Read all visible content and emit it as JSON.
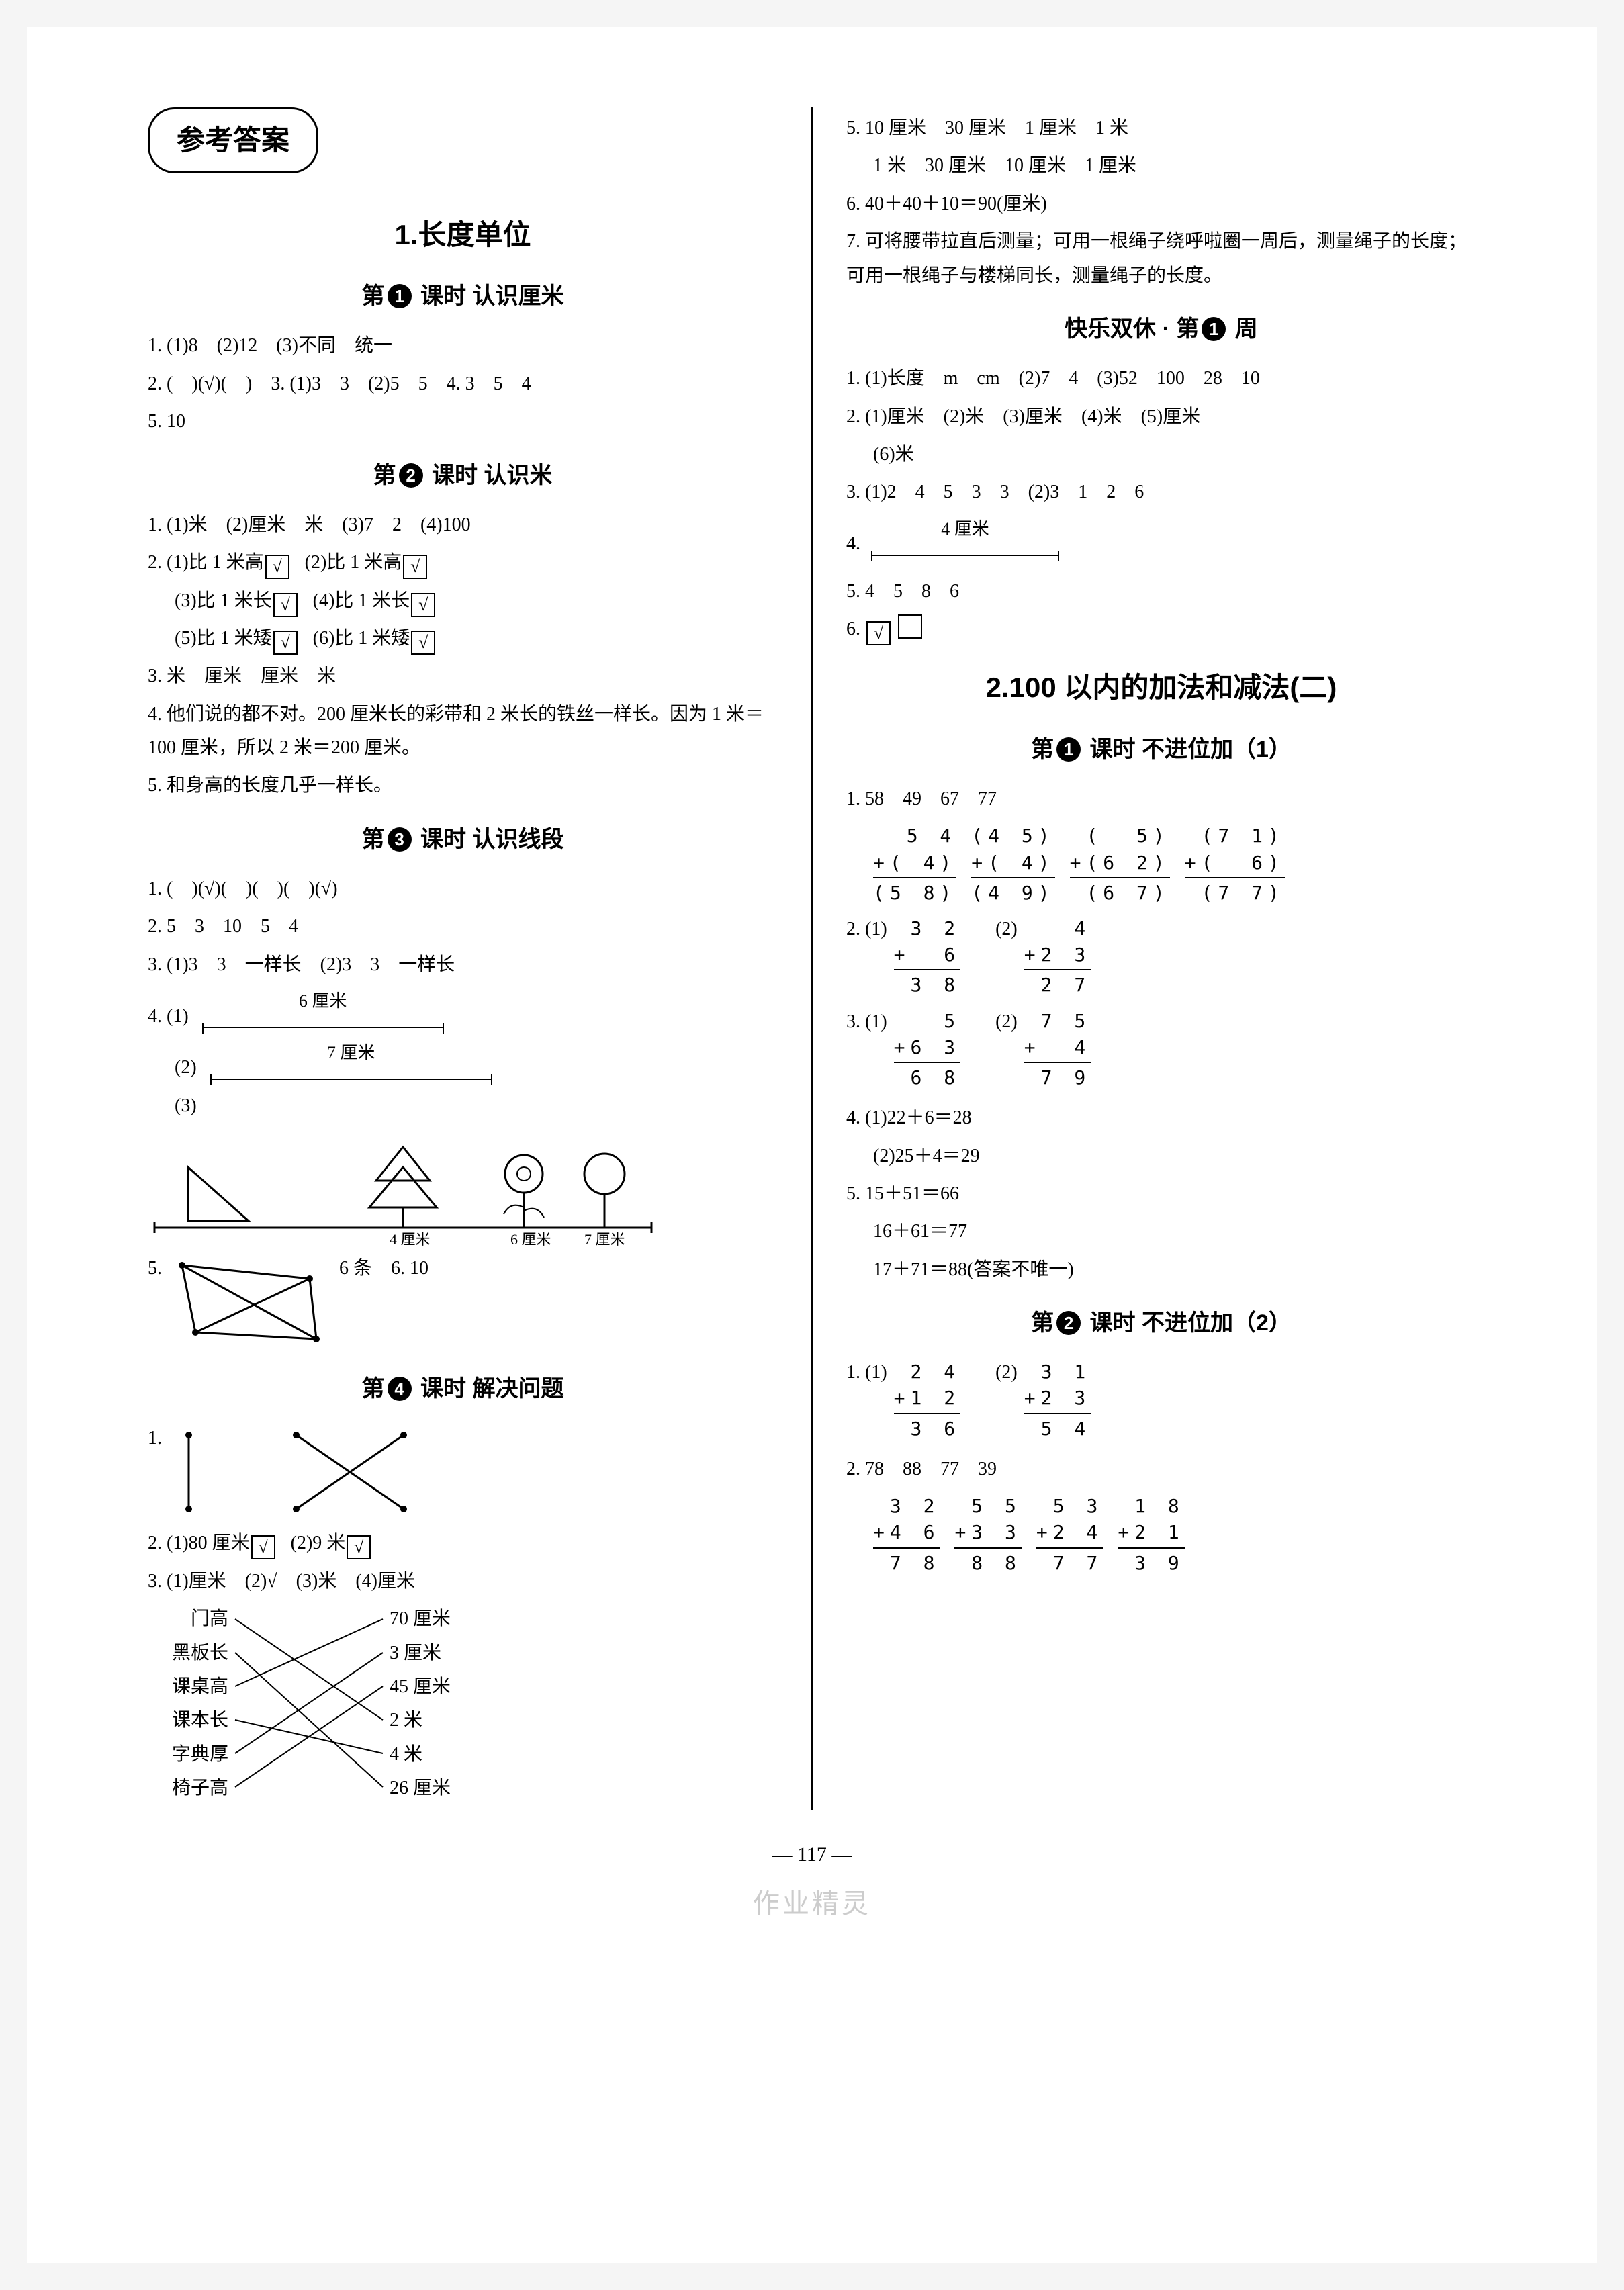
{
  "badge": "参考答案",
  "page_number": "— 117 —",
  "watermark": "作业精灵",
  "left": {
    "unit1": "1.长度单位",
    "l1_title_pre": "第",
    "l1_title_num": "1",
    "l1_title_post": " 课时  认识厘米",
    "l1_1": "1. (1)8　(2)12　(3)不同　统一",
    "l1_2": "2. (　)(√)(　)　3. (1)3　3　(2)5　5　4. 3　5　4",
    "l1_5": "5. 10",
    "l2_title_pre": "第",
    "l2_title_num": "2",
    "l2_title_post": " 课时  认识米",
    "l2_1": "1. (1)米　(2)厘米　米　(3)7　2　(4)100",
    "l2_2a": "2. (1)比 1 米高",
    "l2_2b": "(2)比 1 米高",
    "l2_2c": "(3)比 1 米长",
    "l2_2d": "(4)比 1 米长",
    "l2_2e": "(5)比 1 米矮",
    "l2_2f": "(6)比 1 米矮",
    "l2_3": "3. 米　厘米　厘米　米",
    "l2_4": "4. 他们说的都不对。200 厘米长的彩带和 2 米长的铁丝一样长。因为 1 米＝100 厘米，所以 2 米＝200 厘米。",
    "l2_5": "5. 和身高的长度几乎一样长。",
    "l3_title_pre": "第",
    "l3_title_num": "3",
    "l3_title_post": " 课时  认识线段",
    "l3_1": "1. (　)(√)(　)(　)(　)(√)",
    "l3_2": "2. 5　3　10　5　4",
    "l3_3": "3. (1)3　3　一样长　(2)3　3　一样长",
    "l3_4_1": "4. (1)",
    "l3_4_1_len": "6 厘米",
    "l3_4_2": "(2)",
    "l3_4_2_len": "7 厘米",
    "l3_4_3": "(3)",
    "l3_fig_labels": [
      "4 厘米",
      "6 厘米",
      "7 厘米"
    ],
    "l3_5": "5.",
    "l3_5_tail": "6 条　6. 10",
    "l4_title_pre": "第",
    "l4_title_num": "4",
    "l4_title_post": " 课时  解决问题",
    "l4_1": "1.",
    "l4_2": "2. (1)80 厘米",
    "l4_2b": "(2)9 米",
    "l4_3": "3. (1)厘米　(2)√　(3)米　(4)厘米",
    "l4_4": "4. 门高",
    "match_left": [
      "门高",
      "黑板长",
      "课桌高",
      "课本长",
      "字典厚",
      "椅子高"
    ],
    "match_right": [
      "70 厘米",
      "3 厘米",
      "45 厘米",
      "2 米",
      "4 米",
      "26 厘米"
    ]
  },
  "right": {
    "r5": "5. 10 厘米　30 厘米　1 厘米　1 米",
    "r5b": "1 米　30 厘米　10 厘米　1 厘米",
    "r6": "6. 40＋40＋10＝90(厘米)",
    "r7": "7. 可将腰带拉直后测量；可用一根绳子绕呼啦圈一周后，测量绳子的长度；可用一根绳子与楼梯同长，测量绳子的长度。",
    "week_title_pre": "快乐双休 · 第",
    "week_title_num": "1",
    "week_title_post": " 周",
    "w1": "1. (1)长度　m　cm　(2)7　4　(3)52　100　28　10",
    "w2": "2. (1)厘米　(2)米　(3)厘米　(4)米　(5)厘米",
    "w2b": "(6)米",
    "w3": "3. (1)2　4　5　3　3　(2)3　1　2　6",
    "w4": "4.",
    "w4_len": "4 厘米",
    "w5": "5. 4　5　8　6",
    "w6": "6.",
    "unit2": "2.100 以内的加法和减法(二)",
    "u2l1_pre": "第",
    "u2l1_num": "1",
    "u2l1_post": " 课时  不进位加（1）",
    "u2_1_head": "1. 58　49　67　77",
    "vm1": [
      {
        "a": " 5 4",
        "b": "+( 4)",
        "c": "(5 8)"
      },
      {
        "a": "(4 5)",
        "b": "+( 4)",
        "c": "(4 9)"
      },
      {
        "a": "(  5)",
        "b": "+(6 2)",
        "c": "(6 7)"
      },
      {
        "a": "(7 1)",
        "b": "+(  6)",
        "c": "(7 7)"
      }
    ],
    "u2_2": "2. (1)",
    "u2_2b": "(2)",
    "vm2": [
      {
        "a": " 3 2",
        "b": "+  6",
        "c": " 3 8"
      },
      {
        "a": "   4",
        "b": "+2 3",
        "c": " 2 7"
      }
    ],
    "u2_3": "3. (1)",
    "u2_3b": "(2)",
    "vm3": [
      {
        "a": "   5",
        "b": "+6 3",
        "c": " 6 8"
      },
      {
        "a": " 7 5",
        "b": "+  4",
        "c": " 7 9"
      }
    ],
    "u2_4a": "4. (1)22＋6＝28",
    "u2_4b": "(2)25＋4＝29",
    "u2_5a": "5. 15＋51＝66",
    "u2_5b": "16＋61＝77",
    "u2_5c": "17＋71＝88(答案不唯一)",
    "u2l2_pre": "第",
    "u2l2_num": "2",
    "u2l2_post": " 课时  不进位加（2）",
    "u2l2_1": "1. (1)",
    "u2l2_1b": "(2)",
    "vm4": [
      {
        "a": " 2 4",
        "b": "+1 2",
        "c": " 3 6"
      },
      {
        "a": " 3 1",
        "b": "+2 3",
        "c": " 5 4"
      }
    ],
    "u2l2_2": "2. 78　88　77　39",
    "vm5": [
      {
        "a": " 3 2",
        "b": "+4 6",
        "c": " 7 8"
      },
      {
        "a": " 5 5",
        "b": "+3 3",
        "c": " 8 8"
      },
      {
        "a": " 5 3",
        "b": "+2 4",
        "c": " 7 7"
      },
      {
        "a": " 1 8",
        "b": "+2 1",
        "c": " 3 9"
      }
    ]
  }
}
